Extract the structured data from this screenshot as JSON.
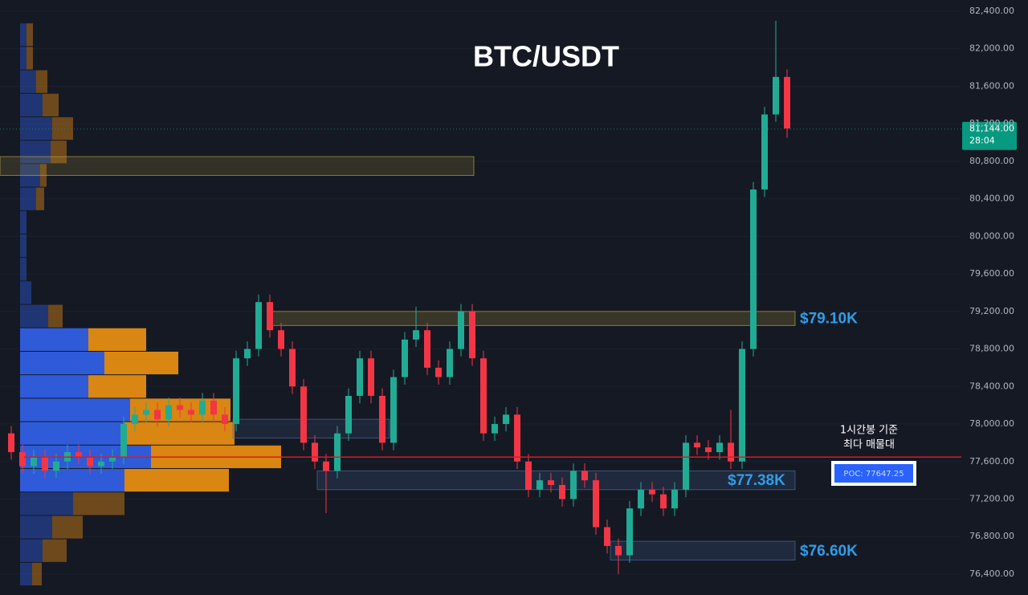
{
  "chart_data": {
    "type": "candlestick",
    "title": "BTC/USDT",
    "ylim": [
      76177,
      82520
    ],
    "yticks": [
      {
        "value": 82400,
        "label": "82,400.00"
      },
      {
        "value": 82000,
        "label": "82,000.00"
      },
      {
        "value": 81600,
        "label": "81,600.00"
      },
      {
        "value": 81200,
        "label": "81,200.00"
      },
      {
        "value": 80800,
        "label": "80,800.00"
      },
      {
        "value": 80400,
        "label": "80,400.00"
      },
      {
        "value": 80000,
        "label": "80,000.00"
      },
      {
        "value": 79600,
        "label": "79,600.00"
      },
      {
        "value": 79200,
        "label": "79,200.00"
      },
      {
        "value": 78800,
        "label": "78,800.00"
      },
      {
        "value": 78400,
        "label": "78,400.00"
      },
      {
        "value": 78000,
        "label": "78,000.00"
      },
      {
        "value": 77600,
        "label": "77,600.00"
      },
      {
        "value": 77200,
        "label": "77,200.00"
      },
      {
        "value": 76800,
        "label": "76,800.00"
      },
      {
        "value": 76400,
        "label": "76,400.00"
      }
    ],
    "grid": true,
    "up_color": "#22ab94",
    "down_color": "#f23645",
    "candles": {
      "open": [
        77900,
        77700,
        77550,
        77650,
        77500,
        77600,
        77700,
        77650,
        77550,
        77600,
        77650,
        78000,
        78100,
        78150,
        78050,
        78200,
        78150,
        78100,
        78250,
        78100,
        78000,
        78700,
        78800,
        79300,
        79000,
        78800,
        78400,
        77800,
        77600,
        77500,
        77900,
        78300,
        78700,
        78300,
        77800,
        78500,
        78900,
        79000,
        78600,
        78500,
        78800,
        79200,
        78700,
        77900,
        78000,
        78100,
        77600,
        77300,
        77400,
        77350,
        77200,
        77500,
        77400,
        76900,
        76700,
        76600,
        77100,
        77300,
        77250,
        77100,
        77300,
        77800,
        77750,
        77700,
        77800,
        77600,
        78800,
        80500,
        81300,
        81700
      ],
      "high": [
        77980,
        77780,
        77730,
        77730,
        77680,
        77780,
        77780,
        77730,
        77680,
        77730,
        78080,
        78180,
        78230,
        78230,
        78280,
        78280,
        78230,
        78330,
        78330,
        78180,
        78780,
        78880,
        79380,
        79380,
        79080,
        78880,
        78480,
        77880,
        77680,
        77980,
        78380,
        78780,
        78780,
        78380,
        78580,
        78980,
        79250,
        79080,
        78680,
        78880,
        79280,
        79280,
        78780,
        78080,
        78180,
        78180,
        77680,
        77480,
        77480,
        77430,
        77580,
        77580,
        77480,
        76980,
        76780,
        77180,
        77380,
        77380,
        77330,
        77380,
        77880,
        77880,
        77830,
        77880,
        78150,
        78880,
        80580,
        81380,
        82300,
        81780
      ],
      "low": [
        77620,
        77470,
        77470,
        77420,
        77420,
        77520,
        77570,
        77470,
        77470,
        77520,
        77570,
        77920,
        78020,
        77970,
        77970,
        78070,
        78020,
        78020,
        78020,
        77920,
        77920,
        78620,
        78720,
        78920,
        78720,
        78320,
        77720,
        77520,
        77050,
        77420,
        77820,
        78220,
        78220,
        77720,
        77720,
        78420,
        78820,
        78520,
        78420,
        78420,
        78720,
        78620,
        77820,
        77820,
        77920,
        77520,
        77220,
        77220,
        77270,
        77120,
        77120,
        77320,
        76820,
        76620,
        76400,
        76520,
        77020,
        77170,
        77020,
        77020,
        77220,
        77670,
        77620,
        77620,
        77520,
        77520,
        78720,
        80420,
        81220,
        81050
      ],
      "close": [
        77700,
        77550,
        77650,
        77500,
        77600,
        77700,
        77650,
        77550,
        77600,
        77650,
        78000,
        78100,
        78150,
        78050,
        78200,
        78150,
        78100,
        78250,
        78100,
        78000,
        78700,
        78800,
        79300,
        79000,
        78800,
        78400,
        77800,
        77600,
        77500,
        77900,
        78300,
        78700,
        78300,
        77800,
        78500,
        78900,
        79000,
        78600,
        78500,
        78800,
        79200,
        78700,
        77900,
        78000,
        78100,
        77600,
        77300,
        77400,
        77350,
        77200,
        77500,
        77400,
        76900,
        76700,
        76600,
        77100,
        77300,
        77250,
        77100,
        77300,
        77800,
        77750,
        77700,
        77800,
        77600,
        78800,
        80500,
        81300,
        81700,
        81150
      ]
    },
    "volume_profile": {
      "prices": [
        82150,
        81900,
        81650,
        81400,
        81150,
        80900,
        80650,
        80400,
        80150,
        79900,
        79650,
        79400,
        79150,
        78900,
        78650,
        78400,
        78150,
        77900,
        77650,
        77400,
        77150,
        76900,
        76650,
        76400
      ],
      "buy": [
        8,
        8,
        20,
        28,
        40,
        38,
        25,
        20,
        8,
        8,
        8,
        14,
        35,
        85,
        105,
        85,
        137,
        130,
        163,
        130,
        66,
        40,
        28,
        15
      ],
      "sell": [
        8,
        8,
        14,
        20,
        26,
        20,
        8,
        10,
        0,
        0,
        0,
        0,
        18,
        72,
        92,
        72,
        125,
        137,
        162,
        130,
        64,
        38,
        30,
        12
      ],
      "buy_color": "#2f5bd8",
      "sell_color": "#d98612",
      "value_area": {
        "low": 77300,
        "high": 78900
      }
    },
    "zones": [
      {
        "low": 80650,
        "high": 80850
      },
      {
        "low": 79050,
        "high": 79200,
        "label": "$79.10K"
      },
      {
        "low": 77850,
        "high": 78050
      },
      {
        "low": 77300,
        "high": 77500,
        "label": "$77.38K"
      },
      {
        "low": 76550,
        "high": 76750,
        "label": "$76.60K"
      }
    ],
    "poc": {
      "value": 77647.25,
      "label": "POC: 77647.25",
      "note": [
        "1시간봉 기준",
        "최다 매물대"
      ],
      "color": "#e0181f"
    },
    "current_price": {
      "value": 81144,
      "label": "81,144.00",
      "countdown": "28:04",
      "color": "#089981"
    }
  }
}
